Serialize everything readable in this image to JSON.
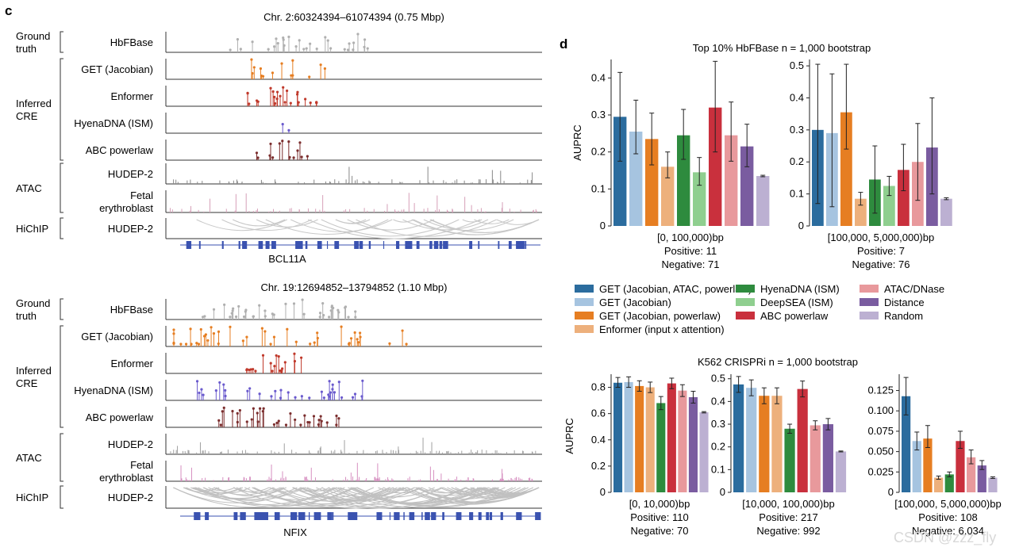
{
  "panel_c": {
    "letter": "c",
    "blocks": [
      {
        "title": "Chr. 2:60324394–61074394 (0.75 Mbp)",
        "gene": "BCL11A",
        "groups": [
          {
            "lines": [
              "Ground",
              "truth"
            ],
            "tracks": [
              0
            ]
          },
          {
            "lines": [
              "Inferred",
              "CRE"
            ],
            "tracks": [
              1,
              2,
              3,
              4
            ]
          },
          {
            "lines": [
              "ATAC"
            ],
            "tracks": [
              5,
              6
            ]
          },
          {
            "lines": [
              "HiChIP"
            ],
            "tracks": [
              7
            ]
          }
        ],
        "tracks": [
          {
            "lines": [
              "HbFBase"
            ],
            "kind": "lollipop",
            "color": "#b0b0b0",
            "seed": 11,
            "n": 30,
            "peak_center": 0.36,
            "spread": 0.22
          },
          {
            "lines": [
              "GET (Jacobian)"
            ],
            "kind": "lollipop",
            "color": "#e67e22",
            "seed": 21,
            "n": 14,
            "peak_center": 0.3,
            "spread": 0.12
          },
          {
            "lines": [
              "Enformer"
            ],
            "kind": "lollipop",
            "color": "#c0392b",
            "seed": 31,
            "n": 24,
            "peak_center": 0.3,
            "spread": 0.1
          },
          {
            "lines": [
              "HyenaDNA (ISM)"
            ],
            "kind": "lollipop",
            "color": "#6a5acd",
            "seed": 41,
            "n": 2,
            "peak_center": 0.3,
            "spread": 0.02
          },
          {
            "lines": [
              "ABC powerlaw"
            ],
            "kind": "lollipop",
            "color": "#7b2d2d",
            "seed": 51,
            "n": 14,
            "peak_center": 0.3,
            "spread": 0.08
          },
          {
            "lines": [
              "HUDEP-2"
            ],
            "kind": "bars",
            "color": "#888888",
            "seed": 61,
            "n": 70
          },
          {
            "lines": [
              "Fetal",
              "erythroblast"
            ],
            "kind": "bars",
            "color": "#d6a0b8",
            "seed": 71,
            "n": 70
          },
          {
            "lines": [
              "HUDEP-2"
            ],
            "kind": "arcs",
            "color": "#c8c8c8",
            "seed": 81,
            "n": 22
          }
        ]
      },
      {
        "title": "Chr. 19:12694852–13794852 (1.10 Mbp)",
        "gene": "NFIX",
        "groups": [
          {
            "lines": [
              "Ground",
              "truth"
            ],
            "tracks": [
              0
            ]
          },
          {
            "lines": [
              "Inferred",
              "CRE"
            ],
            "tracks": [
              1,
              2,
              3,
              4
            ]
          },
          {
            "lines": [
              "ATAC"
            ],
            "tracks": [
              5,
              6
            ]
          },
          {
            "lines": [
              "HiChIP"
            ],
            "tracks": [
              7
            ]
          }
        ],
        "tracks": [
          {
            "lines": [
              "HbFBase"
            ],
            "kind": "lollipop",
            "color": "#b0b0b0",
            "seed": 12,
            "n": 40,
            "peak_center": 0.3,
            "spread": 0.22
          },
          {
            "lines": [
              "GET (Jacobian)"
            ],
            "kind": "lollipop",
            "color": "#e67e22",
            "seed": 22,
            "n": 45,
            "peak_center": 0.3,
            "spread": 0.35
          },
          {
            "lines": [
              "Enformer"
            ],
            "kind": "lollipop",
            "color": "#c0392b",
            "seed": 32,
            "n": 20,
            "peak_center": 0.28,
            "spread": 0.08
          },
          {
            "lines": [
              "HyenaDNA (ISM)"
            ],
            "kind": "lollipop",
            "color": "#6a5acd",
            "seed": 42,
            "n": 35,
            "peak_center": 0.3,
            "spread": 0.25
          },
          {
            "lines": [
              "ABC powerlaw"
            ],
            "kind": "lollipop",
            "color": "#7b2d2d",
            "seed": 52,
            "n": 35,
            "peak_center": 0.3,
            "spread": 0.18
          },
          {
            "lines": [
              "HUDEP-2"
            ],
            "kind": "bars",
            "color": "#a0a0a0",
            "seed": 62,
            "n": 110
          },
          {
            "lines": [
              "Fetal",
              "erythroblast"
            ],
            "kind": "bars",
            "color": "#d68fc0",
            "seed": 72,
            "n": 110
          },
          {
            "lines": [
              "HUDEP-2"
            ],
            "kind": "arcs",
            "color": "#c0c0c0",
            "seed": 82,
            "n": 90
          }
        ]
      }
    ]
  },
  "panel_d": {
    "letter": "d",
    "legend": [
      {
        "label": "GET (Jacobian, ATAC, powerlaw)",
        "color": "#2b6c9e"
      },
      {
        "label": "GET (Jacobian)",
        "color": "#a6c4e0"
      },
      {
        "label": "GET (Jacobian, powerlaw)",
        "color": "#e67e22"
      },
      {
        "label": "Enformer (input x attention)",
        "color": "#edb07c"
      },
      {
        "label": "HyenaDNA (ISM)",
        "color": "#2e8b3e"
      },
      {
        "label": "DeepSEA (ISM)",
        "color": "#8fcf8f"
      },
      {
        "label": "ABC powerlaw",
        "color": "#c9303d"
      },
      {
        "label": "ATAC/DNase",
        "color": "#e8999c"
      },
      {
        "label": "Distance",
        "color": "#7a5ca0"
      },
      {
        "label": "Random",
        "color": "#bcb0d2"
      }
    ]
  },
  "chart_data": [
    {
      "type": "bar",
      "title": "Top 10% HbFBase n = 1,000 bootstrap",
      "ylabel": "AUPRC",
      "ylim": [
        0,
        0.45
      ],
      "yticks": [
        "0",
        "0.1",
        "0.2",
        "0.3",
        "0.4"
      ],
      "xlabel_lines": [
        "[0, 100,000)bp",
        "Positive: 11",
        "Negative: 71"
      ],
      "values": [
        0.295,
        0.255,
        0.235,
        0.16,
        0.245,
        0.145,
        0.32,
        0.245,
        0.215,
        0.135
      ],
      "err_low": [
        0.175,
        0.195,
        0.165,
        0.13,
        0.18,
        0.11,
        0.2,
        0.175,
        0.16,
        0.133
      ],
      "err_high": [
        0.415,
        0.34,
        0.305,
        0.2,
        0.315,
        0.185,
        0.445,
        0.335,
        0.275,
        0.137
      ]
    },
    {
      "type": "bar",
      "ylim": [
        0,
        0.52
      ],
      "yticks": [
        "0",
        "0.1",
        "0.2",
        "0.3",
        "0.4",
        "0.5"
      ],
      "xlabel_lines": [
        "[100,000, 5,000,000)bp",
        "Positive: 7",
        "Negative: 76"
      ],
      "values": [
        0.3,
        0.29,
        0.355,
        0.085,
        0.145,
        0.125,
        0.175,
        0.2,
        0.245,
        0.085
      ],
      "err_low": [
        0.07,
        0.06,
        0.24,
        0.065,
        0.04,
        0.095,
        0.11,
        0.08,
        0.1,
        0.082
      ],
      "err_high": [
        0.505,
        0.475,
        0.505,
        0.105,
        0.25,
        0.155,
        0.255,
        0.32,
        0.4,
        0.088
      ]
    },
    {
      "type": "bar",
      "title": "K562 CRISPRi n = 1,000 bootstrap",
      "ylabel": "AUPRC",
      "ylim": [
        0,
        0.9
      ],
      "yticks": [
        "0",
        "0.2",
        "0.4",
        "0.6",
        "0.8"
      ],
      "xlabel_lines": [
        "[0, 10,000)bp",
        "Positive: 110",
        "Negative: 70"
      ],
      "values": [
        0.835,
        0.84,
        0.81,
        0.8,
        0.68,
        0.83,
        0.775,
        0.725,
        0.61
      ],
      "err_low": [
        0.8,
        0.8,
        0.77,
        0.76,
        0.63,
        0.79,
        0.73,
        0.68,
        0.605
      ],
      "err_high": [
        0.875,
        0.88,
        0.85,
        0.84,
        0.73,
        0.87,
        0.82,
        0.77,
        0.615
      ],
      "colors": [
        0,
        1,
        2,
        3,
        4,
        6,
        7,
        8,
        9
      ]
    },
    {
      "type": "bar",
      "ylim": [
        0,
        0.52
      ],
      "yticks": [
        "0",
        "0.1",
        "0.2",
        "0.3",
        "0.4",
        "0.5"
      ],
      "xlabel_lines": [
        "[10,000, 100,000)bp",
        "Positive: 217",
        "Negative: 992"
      ],
      "values": [
        0.475,
        0.46,
        0.425,
        0.425,
        0.28,
        0.455,
        0.295,
        0.3,
        0.18
      ],
      "err_low": [
        0.44,
        0.425,
        0.39,
        0.39,
        0.26,
        0.42,
        0.275,
        0.275,
        0.178
      ],
      "err_high": [
        0.51,
        0.495,
        0.46,
        0.46,
        0.3,
        0.49,
        0.315,
        0.325,
        0.182
      ],
      "colors": [
        0,
        1,
        2,
        3,
        4,
        6,
        7,
        8,
        9
      ]
    },
    {
      "type": "bar",
      "ylim": [
        0,
        0.145
      ],
      "yticks": [
        "0",
        "0.025",
        "0.050",
        "0.075",
        "0.100",
        "0.125"
      ],
      "xlabel_lines": [
        "[100,000, 5,000,000)bp",
        "Positive: 108",
        "Negative: 6,034"
      ],
      "values": [
        0.118,
        0.063,
        0.066,
        0.018,
        0.022,
        0.063,
        0.043,
        0.033,
        0.018
      ],
      "err_low": [
        0.095,
        0.052,
        0.055,
        0.016,
        0.019,
        0.054,
        0.035,
        0.028,
        0.017
      ],
      "err_high": [
        0.141,
        0.074,
        0.082,
        0.02,
        0.025,
        0.075,
        0.052,
        0.039,
        0.019
      ],
      "colors": [
        0,
        1,
        2,
        3,
        4,
        6,
        7,
        8,
        9
      ]
    }
  ],
  "watermark": "CSDN @zzz_fly"
}
